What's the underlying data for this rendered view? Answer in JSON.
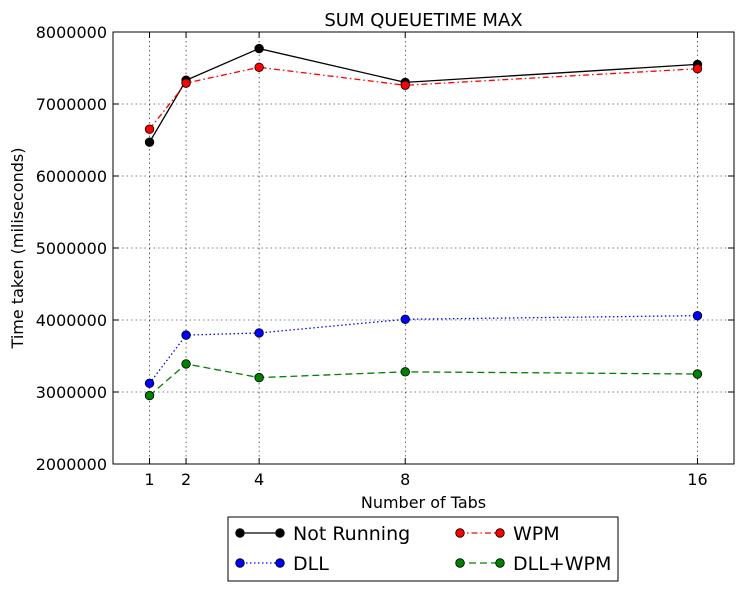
{
  "chart_data": {
    "type": "line",
    "title": "SUM QUEUETIME MAX",
    "xlabel": "Number of Tabs",
    "ylabel": "Time taken (miliseconds)",
    "x": [
      1,
      2,
      4,
      8,
      16
    ],
    "xticks": [
      "1",
      "2",
      "4",
      "8",
      "16"
    ],
    "xlim": [
      0,
      17
    ],
    "ylim": [
      2000000,
      8000000
    ],
    "yticks": [
      "2000000",
      "3000000",
      "4000000",
      "5000000",
      "6000000",
      "7000000",
      "8000000"
    ],
    "grid": true,
    "legend_position": "bottom-center, below axes, 2 columns",
    "series": [
      {
        "name": "Not Running",
        "color": "#000000",
        "dash": "solid",
        "values": [
          6470000,
          7330000,
          7770000,
          7300000,
          7550000
        ]
      },
      {
        "name": "DLL",
        "color": "#0000ff",
        "dash": "dotted",
        "values": [
          3120000,
          3790000,
          3820000,
          4010000,
          4060000
        ]
      },
      {
        "name": "WPM",
        "color": "#ff0000",
        "dash": "dashdot",
        "values": [
          6650000,
          7290000,
          7510000,
          7260000,
          7490000
        ]
      },
      {
        "name": "DLL+WPM",
        "color": "#008000",
        "dash": "dashed",
        "values": [
          2950000,
          3390000,
          3200000,
          3280000,
          3250000
        ]
      }
    ]
  }
}
